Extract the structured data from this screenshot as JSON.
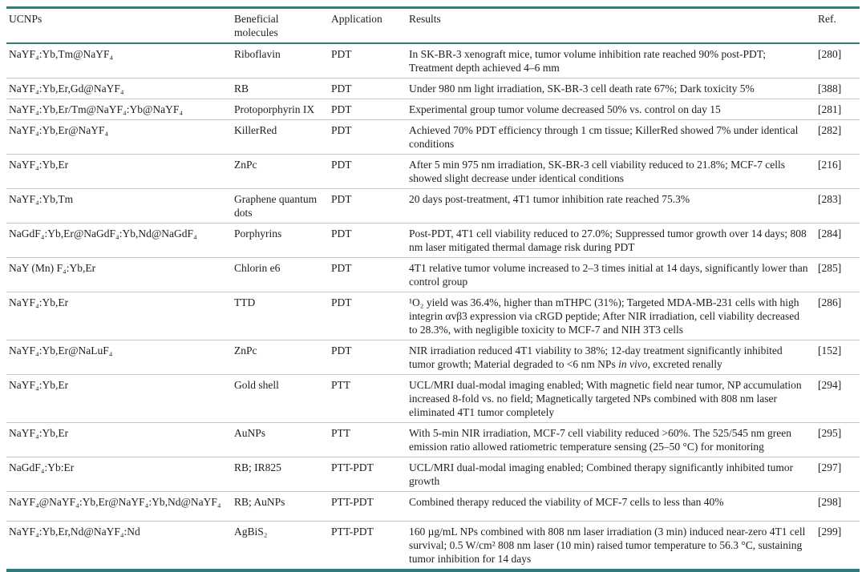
{
  "colors": {
    "accent_teal": "#2e7d7b",
    "row_divider": "#c6c6c6",
    "text": "#1e1e1e"
  },
  "table": {
    "columns": [
      {
        "label": "UCNPs"
      },
      {
        "label": "Beneficial molecules"
      },
      {
        "label": "Application"
      },
      {
        "label": "Results"
      },
      {
        "label": "Ref."
      }
    ],
    "rows": [
      {
        "ucnp": "NaYF₄:Yb,Tm@NaYF₄",
        "molecule": "Riboflavin",
        "application": "PDT",
        "results": "In SK-BR-3 xenograft mice, tumor volume inhibition rate reached 90% post-PDT; Treatment depth achieved 4–6 mm",
        "ref": "[280]"
      },
      {
        "ucnp": "NaYF₄:Yb,Er,Gd@NaYF₄",
        "molecule": "RB",
        "application": "PDT",
        "results": "Under 980 nm light irradiation, SK-BR-3 cell death rate 67%; Dark toxicity 5%",
        "ref": "[388]"
      },
      {
        "ucnp": "NaYF₄:Yb,Er/Tm@NaYF₄:Yb@NaYF₄",
        "molecule": "Protoporphyrin IX",
        "application": "PDT",
        "results": "Experimental group tumor volume decreased 50% vs. control on day 15",
        "ref": "[281]"
      },
      {
        "ucnp": "NaYF₄:Yb,Er@NaYF₄",
        "molecule": "KillerRed",
        "application": "PDT",
        "results": "Achieved 70% PDT efficiency through 1 cm tissue; KillerRed showed 7% under identical conditions",
        "ref": "[282]"
      },
      {
        "ucnp": "NaYF₄:Yb,Er",
        "molecule": "ZnPc",
        "application": "PDT",
        "results": "After 5 min 975 nm irradiation, SK-BR-3 cell viability reduced to 21.8%; MCF-7 cells showed slight decrease under identical conditions",
        "ref": "[216]"
      },
      {
        "ucnp": "NaYF₄:Yb,Tm",
        "molecule": "Graphene quantum dots",
        "application": "PDT",
        "results": "20 days post-treatment, 4T1 tumor inhibition rate reached 75.3%",
        "ref": "[283]"
      },
      {
        "ucnp": "NaGdF₄:Yb,Er@NaGdF₄:Yb,Nd@NaGdF₄",
        "molecule": "Porphyrins",
        "application": "PDT",
        "results": "Post-PDT, 4T1 cell viability reduced to 27.0%; Suppressed tumor growth over 14 days; 808 nm laser mitigated thermal damage risk during PDT",
        "ref": "[284]"
      },
      {
        "ucnp": "NaY (Mn) F₄:Yb,Er",
        "molecule": "Chlorin e6",
        "application": "PDT",
        "results": "4T1 relative tumor volume increased to 2–3 times initial at 14 days, significantly lower than control group",
        "ref": "[285]"
      },
      {
        "ucnp": "NaYF₄:Yb,Er",
        "molecule": "TTD",
        "application": "PDT",
        "results": "¹O₂ yield was 36.4%, higher than mTHPC (31%); Targeted MDA-MB-231 cells with high integrin αvβ3 expression via cRGD peptide; After NIR irradiation, cell viability decreased to 28.3%, with negligible toxicity to MCF-7 and NIH 3T3 cells",
        "ref": "[286]"
      },
      {
        "ucnp": "NaYF₄:Yb,Er@NaLuF₄",
        "molecule": "ZnPc",
        "application": "PDT",
        "results": "NIR irradiation reduced 4T1 viability to 38%; 12-day treatment significantly inhibited tumor growth; Material degraded to <6 nm NPs in vivo, excreted renally",
        "ref": "[152]"
      },
      {
        "ucnp": "NaYF₄:Yb,Er",
        "molecule": "Gold shell",
        "application": "PTT",
        "results": "UCL/MRI dual-modal imaging enabled; With magnetic field near tumor, NP accumulation increased 8-fold vs. no field; Magnetically targeted NPs combined with 808 nm laser eliminated 4T1 tumor completely",
        "ref": "[294]"
      },
      {
        "ucnp": "NaYF₄:Yb,Er",
        "molecule": "AuNPs",
        "application": "PTT",
        "results": "With 5-min NIR irradiation, MCF-7 cell viability reduced >60%. The 525/545 nm green emission ratio allowed ratiometric temperature sensing (25–50 °C) for monitoring",
        "ref": "[295]"
      },
      {
        "ucnp": "NaGdF₄:Yb:Er",
        "molecule": "RB; IR825",
        "application": "PTT-PDT",
        "results": "UCL/MRI dual-modal imaging enabled; Combined therapy significantly inhibited tumor growth",
        "ref": "[297]"
      },
      {
        "ucnp": "NaYF₄@NaYF₄:Yb,Er@NaYF₄:Yb,Nd@NaYF₄",
        "molecule": "RB; AuNPs",
        "application": "PTT-PDT",
        "results": "Combined therapy reduced the viability of MCF-7 cells to less than 40%",
        "ref": "[298]"
      },
      {
        "ucnp": "NaYF₄:Yb,Er,Nd@NaYF₄:Nd",
        "molecule": "AgBiS₂",
        "application": "PTT-PDT",
        "results": "160 µg/mL NPs combined with 808 nm laser irradiation (3 min) induced near-zero 4T1 cell survival; 0.5 W/cm² 808 nm laser (10 min) raised tumor temperature to 56.3 °C, sustaining tumor inhibition for 14 days",
        "ref": "[299]"
      }
    ]
  }
}
